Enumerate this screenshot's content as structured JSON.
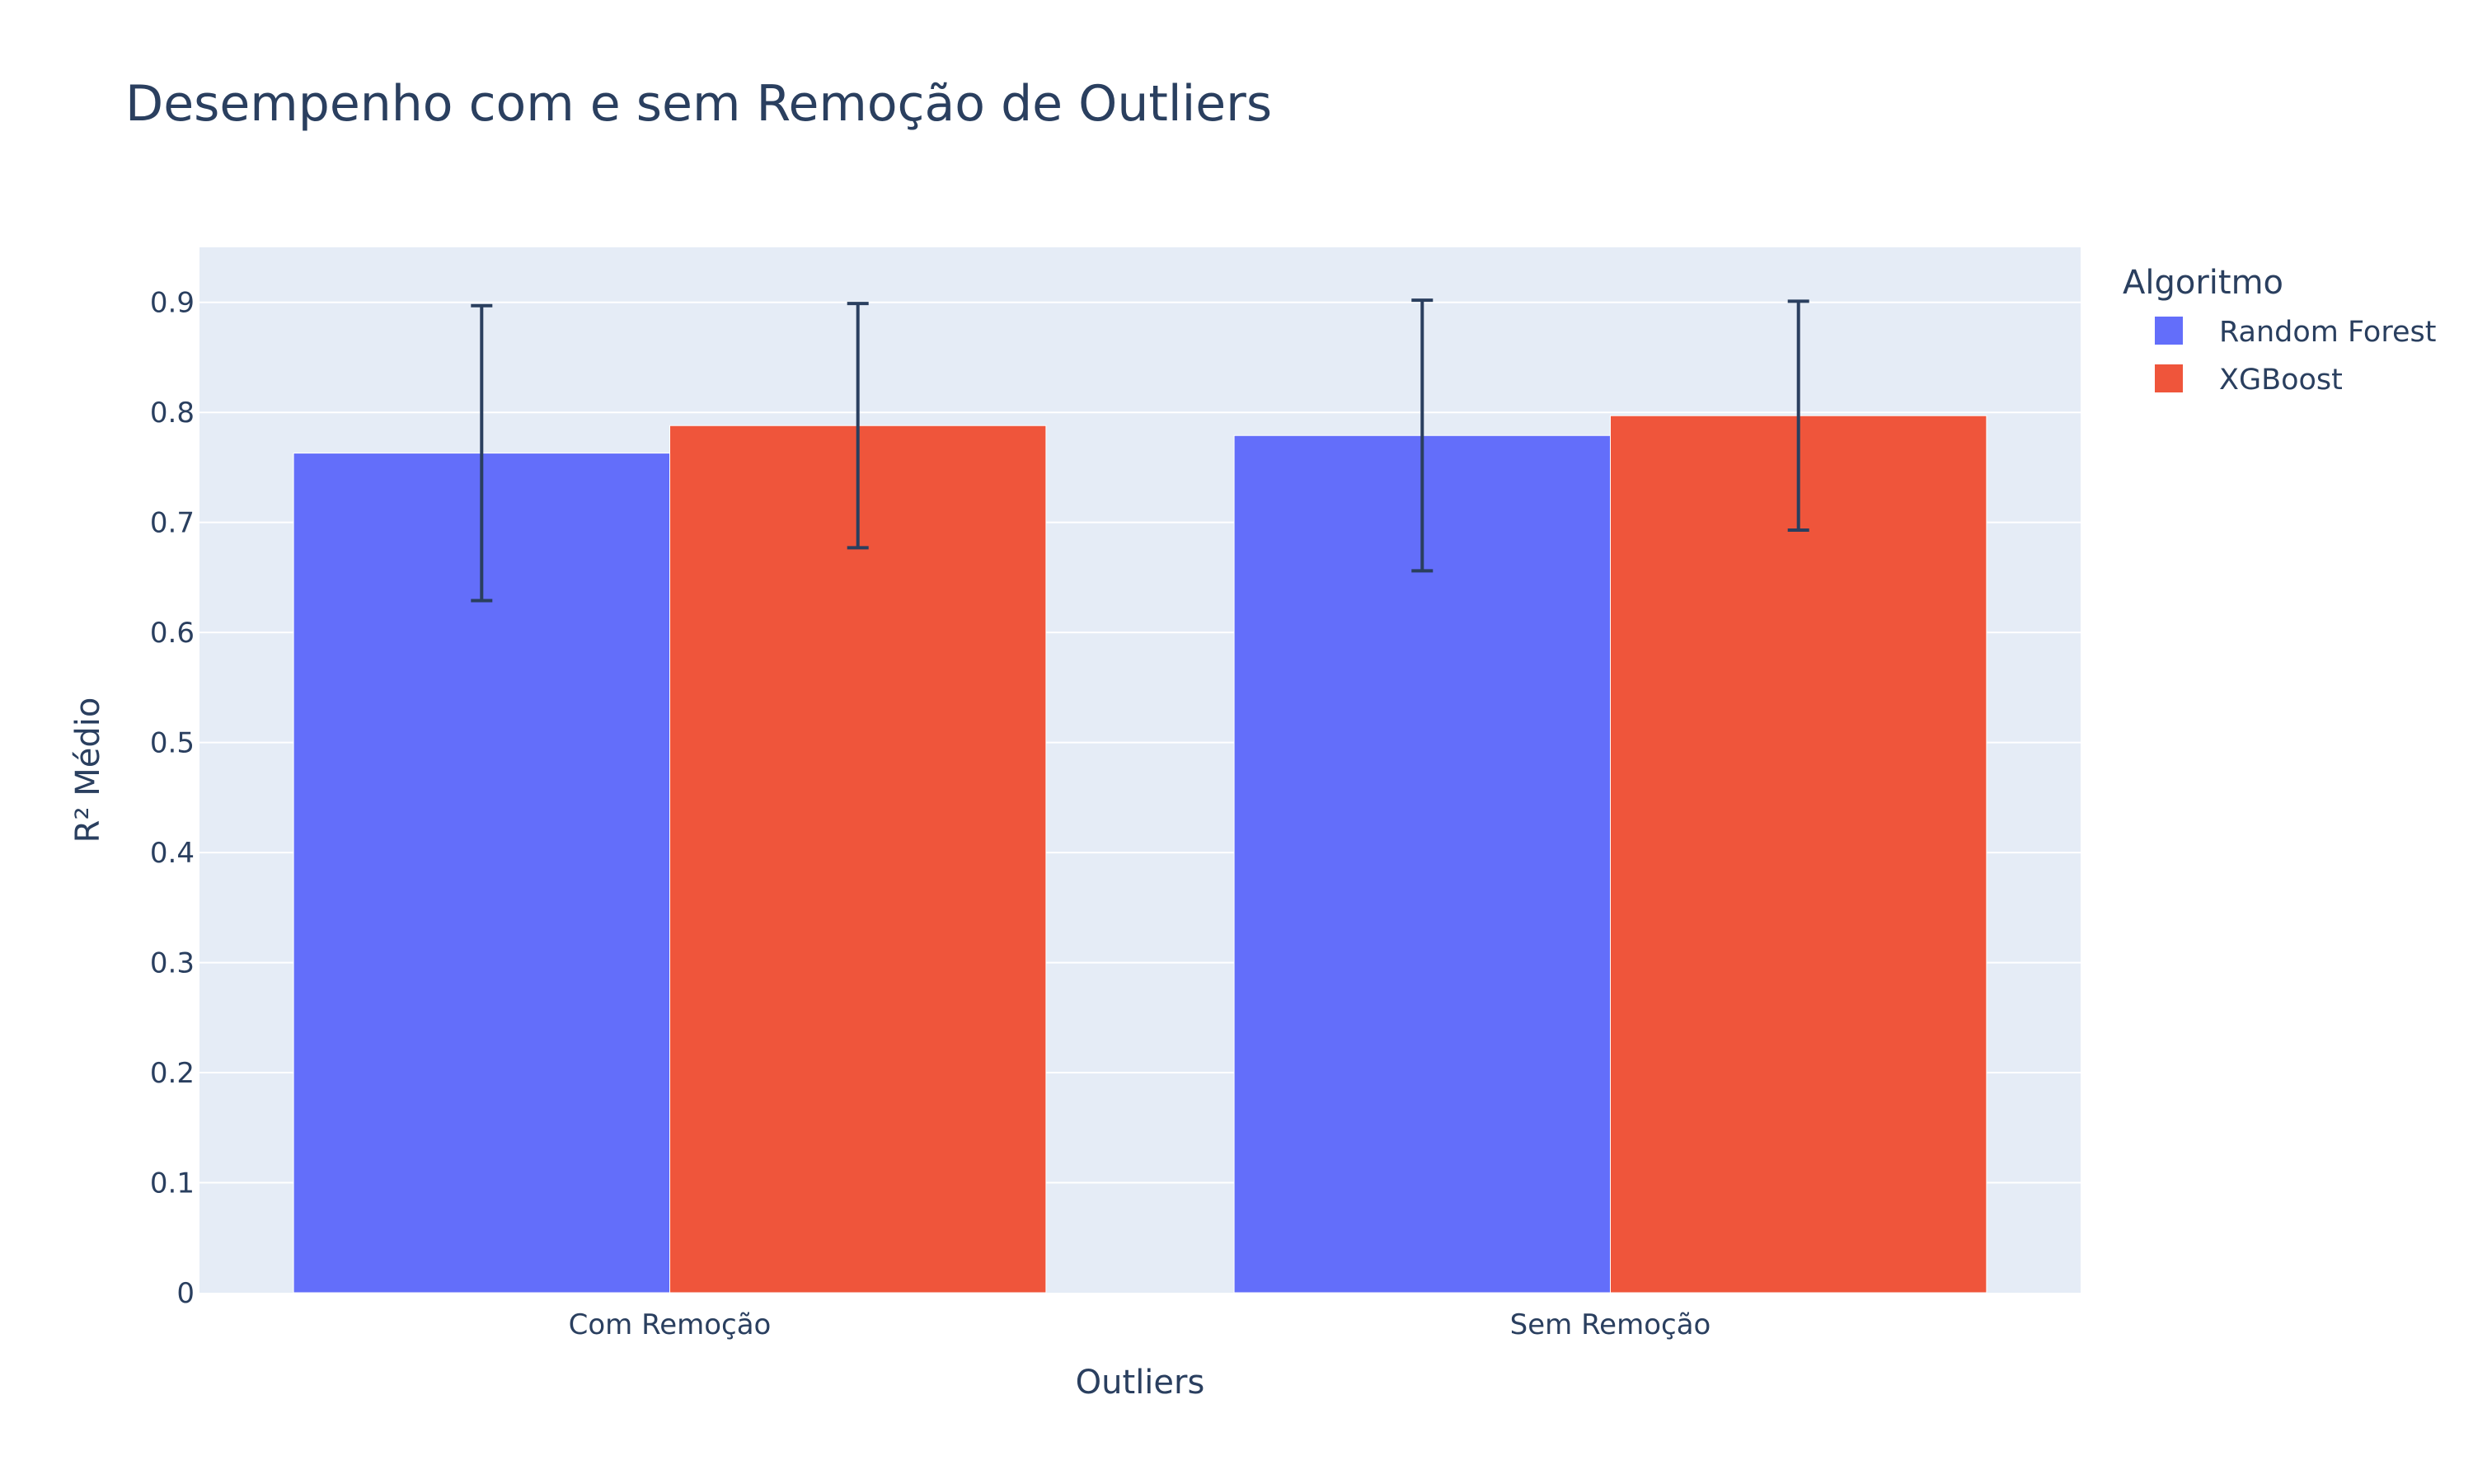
{
  "chart_data": {
    "type": "bar",
    "title": "Desempenho com e sem Remoção de Outliers",
    "xlabel": "Outliers",
    "ylabel": "R² Médio",
    "categories": [
      "Com Remoção",
      "Sem Remoção"
    ],
    "series": [
      {
        "name": "Random Forest",
        "color": "#636efa",
        "values": [
          0.763,
          0.779
        ],
        "error": [
          0.134,
          0.123
        ]
      },
      {
        "name": "XGBoost",
        "color": "#ef553b",
        "values": [
          0.788,
          0.797
        ],
        "error": [
          0.111,
          0.104
        ]
      }
    ],
    "ylim": [
      0,
      0.95
    ],
    "yticks": [
      0,
      0.1,
      0.2,
      0.3,
      0.4,
      0.5,
      0.6,
      0.7,
      0.8,
      0.9
    ],
    "ytick_labels": [
      "0",
      "0.1",
      "0.2",
      "0.3",
      "0.4",
      "0.5",
      "0.6",
      "0.7",
      "0.8",
      "0.9"
    ],
    "legend_title": "Algoritmo",
    "legend_position": "top-right",
    "grid": true,
    "colors": {
      "plot_background": "#e5ecf6",
      "text": "#2a3f5f",
      "grid": "#ffffff",
      "error_bar": "#2a3f5f"
    }
  }
}
